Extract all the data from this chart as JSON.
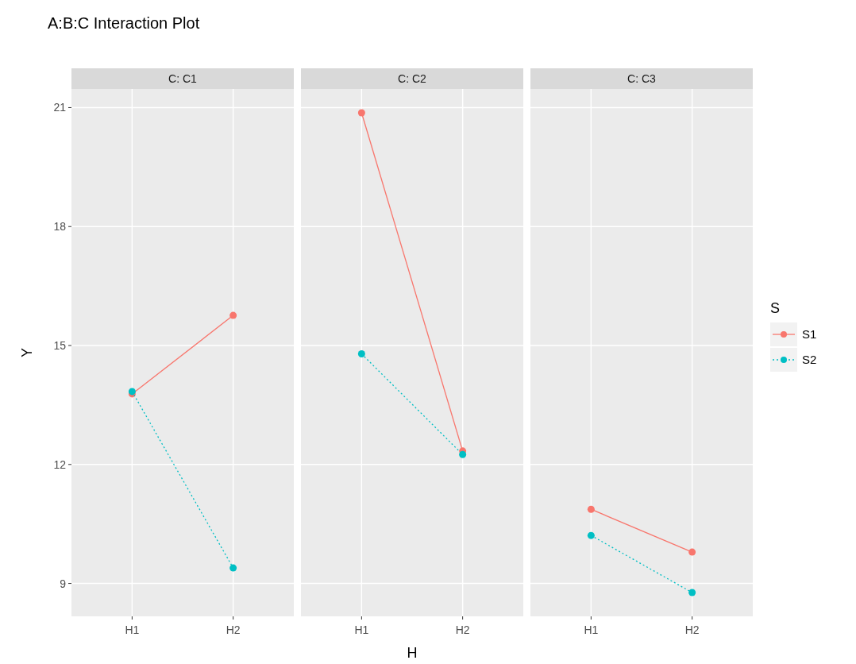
{
  "chart_data": [
    {
      "type": "line",
      "title": "A:B:C Interaction Plot",
      "subtitle": "C: C1",
      "ylabel": "Y",
      "categories": [
        "H1",
        "H2"
      ],
      "ylim": [
        8.17,
        21.47
      ],
      "yticks": [
        9,
        12,
        15,
        18,
        21
      ],
      "grid": true,
      "marker": "circle",
      "series": [
        {
          "color": "#f8766d",
          "line_style": "solid",
          "values": [
            13.78,
            15.76
          ]
        },
        {
          "color": "#00bfc4",
          "line_style": "dotted",
          "values": [
            13.84,
            9.39
          ]
        }
      ]
    },
    {
      "type": "line",
      "subtitle": "C: C2",
      "xlabel": "H",
      "categories": [
        "H1",
        "H2"
      ],
      "ylim": [
        8.17,
        21.47
      ],
      "yticks": [
        9,
        12,
        15,
        18,
        21
      ],
      "tick_labels": "x",
      "grid": true,
      "marker": "circle",
      "series": [
        {
          "color": "#f8766d",
          "line_style": "solid",
          "values": [
            20.87,
            12.34
          ]
        },
        {
          "color": "#00bfc4",
          "line_style": "dotted",
          "values": [
            14.79,
            12.25
          ]
        }
      ]
    },
    {
      "type": "line",
      "subtitle": "C: C3",
      "legend_title": "S",
      "categories": [
        "H1",
        "H2"
      ],
      "ylim": [
        8.17,
        21.47
      ],
      "yticks": [
        9,
        12,
        15,
        18,
        21
      ],
      "tick_labels": "x",
      "grid": true,
      "marker": "circle",
      "legend": "right",
      "series": [
        {
          "name": "S1",
          "color": "#f8766d",
          "line_style": "solid",
          "values": [
            10.87,
            9.79
          ]
        },
        {
          "name": "S2",
          "color": "#00bfc4",
          "line_style": "dotted",
          "values": [
            10.21,
            8.77
          ]
        }
      ]
    }
  ]
}
